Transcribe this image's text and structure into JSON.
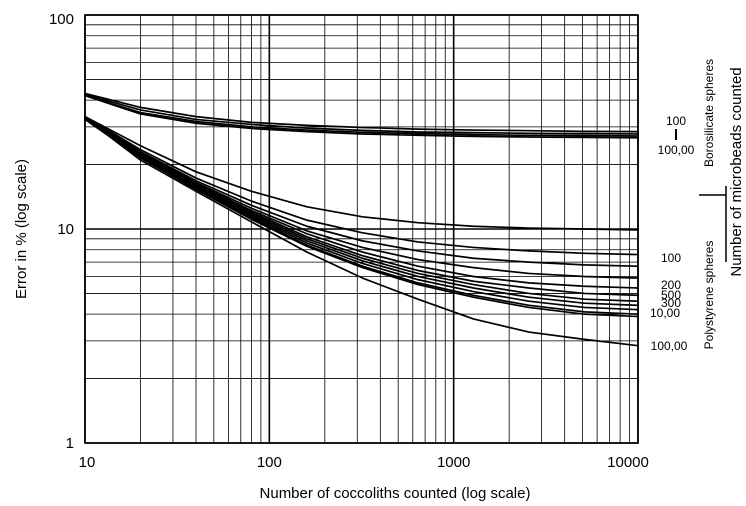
{
  "chart_data": {
    "type": "line",
    "title": "",
    "xlabel": "Number of coccoliths counted (log scale)",
    "ylabel": "Error in % (log scale)",
    "right_label": "Number of microbeads counted",
    "x_scale": "log",
    "y_scale": "log",
    "xlim": [
      10,
      10000
    ],
    "ylim": [
      1,
      100
    ],
    "grid": true,
    "x_tick_labels": [
      "10",
      "100",
      "1000",
      "10000"
    ],
    "y_tick_labels": [
      "1",
      "10",
      "100"
    ],
    "groups": [
      {
        "name": "Borosilicate spheres",
        "labels": [
          "100",
          "100,00"
        ]
      },
      {
        "name": "Polystyrene spheres",
        "labels": [
          "100",
          "200",
          "300",
          "500",
          "10,00",
          "100,00"
        ]
      }
    ],
    "borosilicate_series": [
      {
        "x": [
          10,
          20,
          40,
          80,
          160,
          320,
          640,
          1280,
          2560,
          5120,
          10000
        ],
        "y": [
          43,
          37,
          33.5,
          31.5,
          30.5,
          29.8,
          29.3,
          29.0,
          28.8,
          28.6,
          28.5
        ]
      },
      {
        "x": [
          10,
          20,
          40,
          80,
          160,
          320,
          640,
          1280,
          2560,
          5120,
          10000
        ],
        "y": [
          42.5,
          36,
          32.5,
          30.8,
          29.6,
          28.9,
          28.4,
          28.2,
          28.0,
          27.9,
          27.8
        ]
      },
      {
        "x": [
          10,
          20,
          40,
          80,
          160,
          320,
          640,
          1280,
          2560,
          5120,
          10000
        ],
        "y": [
          42,
          35,
          31.8,
          30,
          29,
          28.3,
          27.9,
          27.6,
          27.4,
          27.3,
          27.2
        ]
      },
      {
        "x": [
          10,
          20,
          40,
          80,
          160,
          320,
          640,
          1280,
          2560,
          5120,
          10000
        ],
        "y": [
          42,
          34.5,
          31.2,
          29.5,
          28.5,
          27.8,
          27.4,
          27.1,
          26.9,
          26.8,
          26.7
        ]
      }
    ],
    "polystyrene_series": [
      {
        "x": [
          10,
          20,
          40,
          80,
          160,
          320,
          640,
          1280,
          2560,
          5120,
          10000
        ],
        "y": [
          33.5,
          24.5,
          18.5,
          15.0,
          12.7,
          11.4,
          10.7,
          10.3,
          10.1,
          10.0,
          9.9
        ]
      },
      {
        "x": [
          10,
          20,
          40,
          80,
          160,
          320,
          640,
          1280,
          2560,
          5120,
          10000
        ],
        "y": [
          33.5,
          23.5,
          17.3,
          13.5,
          11.0,
          9.6,
          8.7,
          8.2,
          7.9,
          7.7,
          7.6
        ]
      },
      {
        "x": [
          10,
          20,
          40,
          80,
          160,
          320,
          640,
          1280,
          2560,
          5120,
          10000
        ],
        "y": [
          33.5,
          23.0,
          16.8,
          12.9,
          10.3,
          8.8,
          7.9,
          7.3,
          7.0,
          6.8,
          6.7
        ]
      },
      {
        "x": [
          10,
          20,
          40,
          80,
          160,
          320,
          640,
          1280,
          2560,
          5120,
          10000
        ],
        "y": [
          33,
          22.8,
          16.5,
          12.5,
          9.8,
          8.2,
          7.2,
          6.6,
          6.2,
          6.0,
          5.9
        ]
      },
      {
        "x": [
          10,
          20,
          40,
          80,
          160,
          320,
          640,
          1280,
          2560,
          5120,
          10000
        ],
        "y": [
          33,
          22.6,
          16.3,
          12.2,
          9.5,
          7.8,
          6.7,
          6.0,
          5.6,
          5.4,
          5.3
        ]
      },
      {
        "x": [
          10,
          20,
          40,
          80,
          160,
          320,
          640,
          1280,
          2560,
          5120,
          10000
        ],
        "y": [
          33,
          22.4,
          16.1,
          12.0,
          9.2,
          7.5,
          6.4,
          5.7,
          5.3,
          5.0,
          4.9
        ]
      },
      {
        "x": [
          10,
          20,
          40,
          80,
          160,
          320,
          640,
          1280,
          2560,
          5120,
          10000
        ],
        "y": [
          33,
          22.2,
          15.9,
          11.8,
          9.0,
          7.3,
          6.2,
          5.5,
          5.0,
          4.7,
          4.6
        ]
      },
      {
        "x": [
          10,
          20,
          40,
          80,
          160,
          320,
          640,
          1280,
          2560,
          5120,
          10000
        ],
        "y": [
          33,
          22.0,
          15.8,
          11.6,
          8.8,
          7.1,
          6.0,
          5.3,
          4.8,
          4.5,
          4.4
        ]
      },
      {
        "x": [
          10,
          20,
          40,
          80,
          160,
          320,
          640,
          1280,
          2560,
          5120,
          10000
        ],
        "y": [
          33,
          21.8,
          15.6,
          11.4,
          8.6,
          6.9,
          5.8,
          5.1,
          4.6,
          4.3,
          4.2
        ]
      },
      {
        "x": [
          10,
          20,
          40,
          80,
          160,
          320,
          640,
          1280,
          2560,
          5120,
          10000
        ],
        "y": [
          33,
          21.6,
          15.4,
          11.2,
          8.4,
          6.7,
          5.6,
          4.9,
          4.4,
          4.1,
          4.0
        ]
      },
      {
        "x": [
          10,
          20,
          40,
          80,
          160,
          320,
          640,
          1280,
          2560,
          5120,
          10000
        ],
        "y": [
          32.5,
          21.5,
          15.3,
          11.1,
          8.3,
          6.6,
          5.5,
          4.8,
          4.3,
          4.0,
          3.9
        ]
      },
      {
        "x": [
          10,
          20,
          40,
          80,
          160,
          320,
          640,
          1280,
          2560,
          5120,
          10000
        ],
        "y": [
          33,
          21.0,
          15.0,
          10.8,
          7.8,
          5.9,
          4.7,
          3.8,
          3.3,
          3.05,
          2.85
        ]
      }
    ]
  }
}
